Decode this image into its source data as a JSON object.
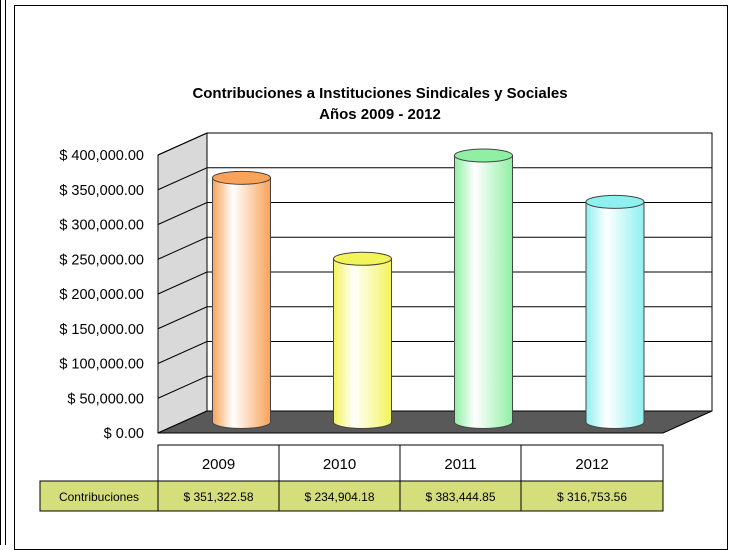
{
  "chart_data": {
    "type": "bar",
    "title": "Contribuciones a Instituciones Sindicales y Sociales",
    "subtitle": "Años 2009 - 2012",
    "categories": [
      "2009",
      "2010",
      "2011",
      "2012"
    ],
    "series": [
      {
        "name": "Contribuciones",
        "values": [
          351322.58,
          234904.18,
          383444.85,
          316753.56
        ],
        "labels": [
          "$ 351,322.58",
          "$ 234,904.18",
          "$ 383,444.85",
          "$ 316,753.56"
        ]
      }
    ],
    "ylim": [
      0,
      400000
    ],
    "yticks": [
      {
        "value": 0,
        "label": "$ 0.00"
      },
      {
        "value": 50000,
        "label": "$ 50,000.00"
      },
      {
        "value": 100000,
        "label": "$ 100,000.00"
      },
      {
        "value": 150000,
        "label": "$ 150,000.00"
      },
      {
        "value": 200000,
        "label": "$ 200,000.00"
      },
      {
        "value": 250000,
        "label": "$ 250,000.00"
      },
      {
        "value": 300000,
        "label": "$ 300,000.00"
      },
      {
        "value": 350000,
        "label": "$ 350,000.00"
      },
      {
        "value": 400000,
        "label": "$ 400,000.00"
      }
    ],
    "grid": true,
    "legend": "data table below chart",
    "colors": [
      "#f9a25a",
      "#f3f35a",
      "#8ff0a4",
      "#8ff0f0"
    ],
    "table_label_fill": "#d4df7c"
  }
}
